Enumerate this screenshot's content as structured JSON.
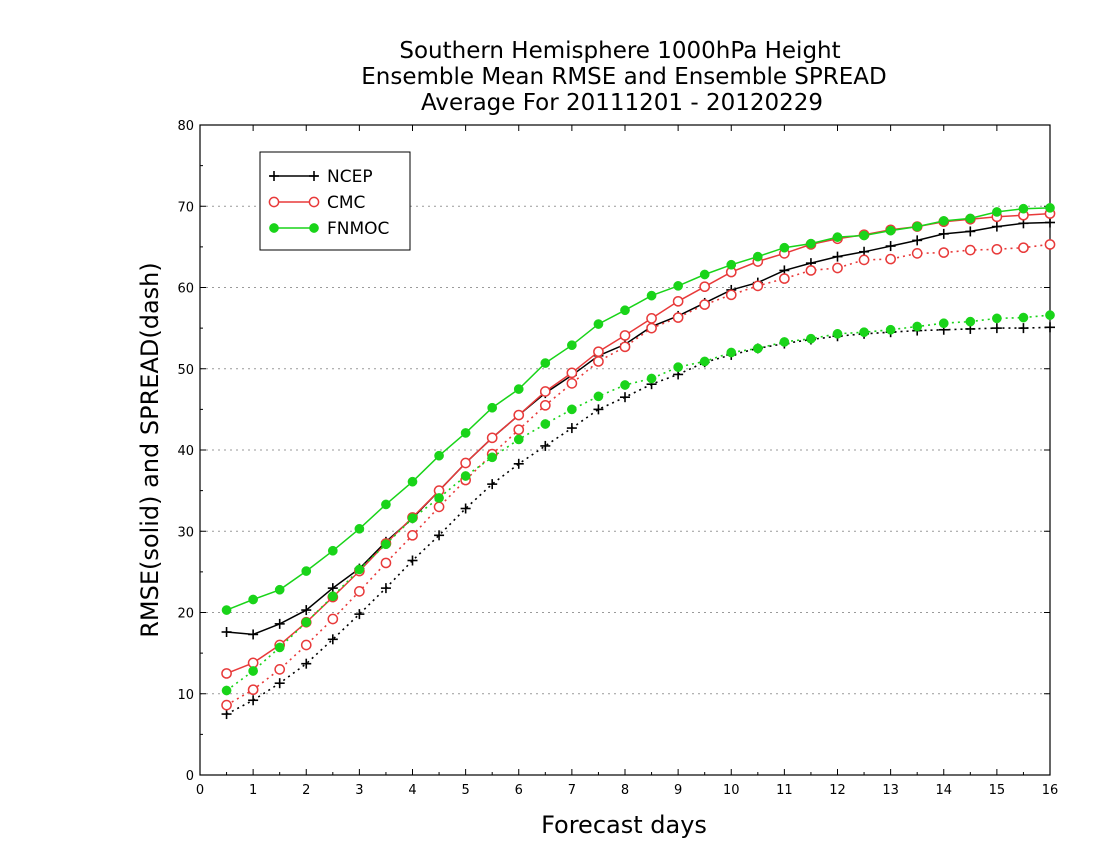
{
  "chart_data": {
    "type": "line",
    "title": [
      "Southern Hemisphere 1000hPa Height",
      "Ensemble Mean RMSE and Ensemble SPREAD",
      "Average For 20111201 - 20120229"
    ],
    "xlabel": "Forecast days",
    "ylabel": "RMSE(solid) and SPREAD(dash)",
    "xlim": [
      0,
      16
    ],
    "ylim": [
      0,
      80
    ],
    "xticks": [
      "0",
      "1",
      "2",
      "3",
      "4",
      "5",
      "6",
      "7",
      "8",
      "9",
      "10",
      "11",
      "12",
      "13",
      "14",
      "15",
      "16"
    ],
    "yticks": [
      "0",
      "10",
      "20",
      "30",
      "40",
      "50",
      "60",
      "70",
      "80"
    ],
    "grid": true,
    "legend_position": "top-left",
    "x": [
      0.5,
      1,
      1.5,
      2,
      2.5,
      3,
      3.5,
      4,
      4.5,
      5,
      5.5,
      6,
      6.5,
      7,
      7.5,
      8,
      8.5,
      9,
      9.5,
      10,
      10.5,
      11,
      11.5,
      12,
      12.5,
      13,
      13.5,
      14,
      14.5,
      15,
      15.5,
      16
    ],
    "series": [
      {
        "name": "NCEP",
        "color": "#000000",
        "marker": "plus",
        "rmse": [
          17.6,
          17.3,
          18.6,
          20.3,
          23.0,
          25.4,
          28.7,
          31.6,
          35.0,
          38.4,
          41.5,
          44.3,
          47.0,
          49.2,
          51.6,
          53.0,
          55.2,
          56.5,
          58.1,
          59.7,
          60.6,
          62.1,
          63.0,
          63.8,
          64.4,
          65.1,
          65.8,
          66.6,
          66.9,
          67.5,
          67.9,
          68.0
        ],
        "spread": [
          7.5,
          9.2,
          11.3,
          13.7,
          16.7,
          19.8,
          23.0,
          26.4,
          29.5,
          32.8,
          35.8,
          38.3,
          40.5,
          42.7,
          45.0,
          46.5,
          48.1,
          49.3,
          50.8,
          51.7,
          52.5,
          53.1,
          53.6,
          54.0,
          54.3,
          54.5,
          54.7,
          54.8,
          54.9,
          55.0,
          55.0,
          55.1
        ]
      },
      {
        "name": "CMC",
        "color": "#e83a3a",
        "marker": "open-circle",
        "rmse": [
          12.5,
          13.8,
          16.0,
          18.8,
          21.9,
          25.1,
          28.5,
          31.7,
          35.0,
          38.4,
          41.5,
          44.3,
          47.2,
          49.5,
          52.1,
          54.1,
          56.2,
          58.3,
          60.1,
          61.9,
          63.2,
          64.2,
          65.3,
          66.0,
          66.5,
          67.1,
          67.5,
          68.1,
          68.4,
          68.7,
          68.9,
          69.1
        ],
        "spread": [
          8.6,
          10.5,
          13.0,
          16.0,
          19.2,
          22.6,
          26.1,
          29.5,
          33.0,
          36.3,
          39.5,
          42.5,
          45.5,
          48.2,
          50.9,
          52.7,
          55.0,
          56.3,
          57.9,
          59.1,
          60.2,
          61.1,
          62.1,
          62.4,
          63.4,
          63.5,
          64.2,
          64.3,
          64.6,
          64.7,
          64.9,
          65.3
        ]
      },
      {
        "name": "FNMOC",
        "color": "#19d419",
        "marker": "filled-circle",
        "rmse": [
          20.3,
          21.6,
          22.8,
          25.1,
          27.6,
          30.3,
          33.3,
          36.1,
          39.3,
          42.1,
          45.2,
          47.5,
          50.7,
          52.9,
          55.5,
          57.2,
          59.0,
          60.2,
          61.6,
          62.8,
          63.8,
          64.9,
          65.4,
          66.2,
          66.4,
          67.0,
          67.5,
          68.2,
          68.5,
          69.3,
          69.7,
          69.8
        ],
        "spread": [
          10.4,
          12.8,
          15.7,
          18.8,
          22.0,
          25.3,
          28.4,
          31.6,
          34.1,
          36.8,
          39.1,
          41.3,
          43.2,
          45.0,
          46.6,
          48.0,
          48.8,
          50.2,
          50.9,
          52.0,
          52.5,
          53.3,
          53.7,
          54.3,
          54.5,
          54.8,
          55.2,
          55.6,
          55.8,
          56.2,
          56.3,
          56.6
        ]
      }
    ]
  }
}
